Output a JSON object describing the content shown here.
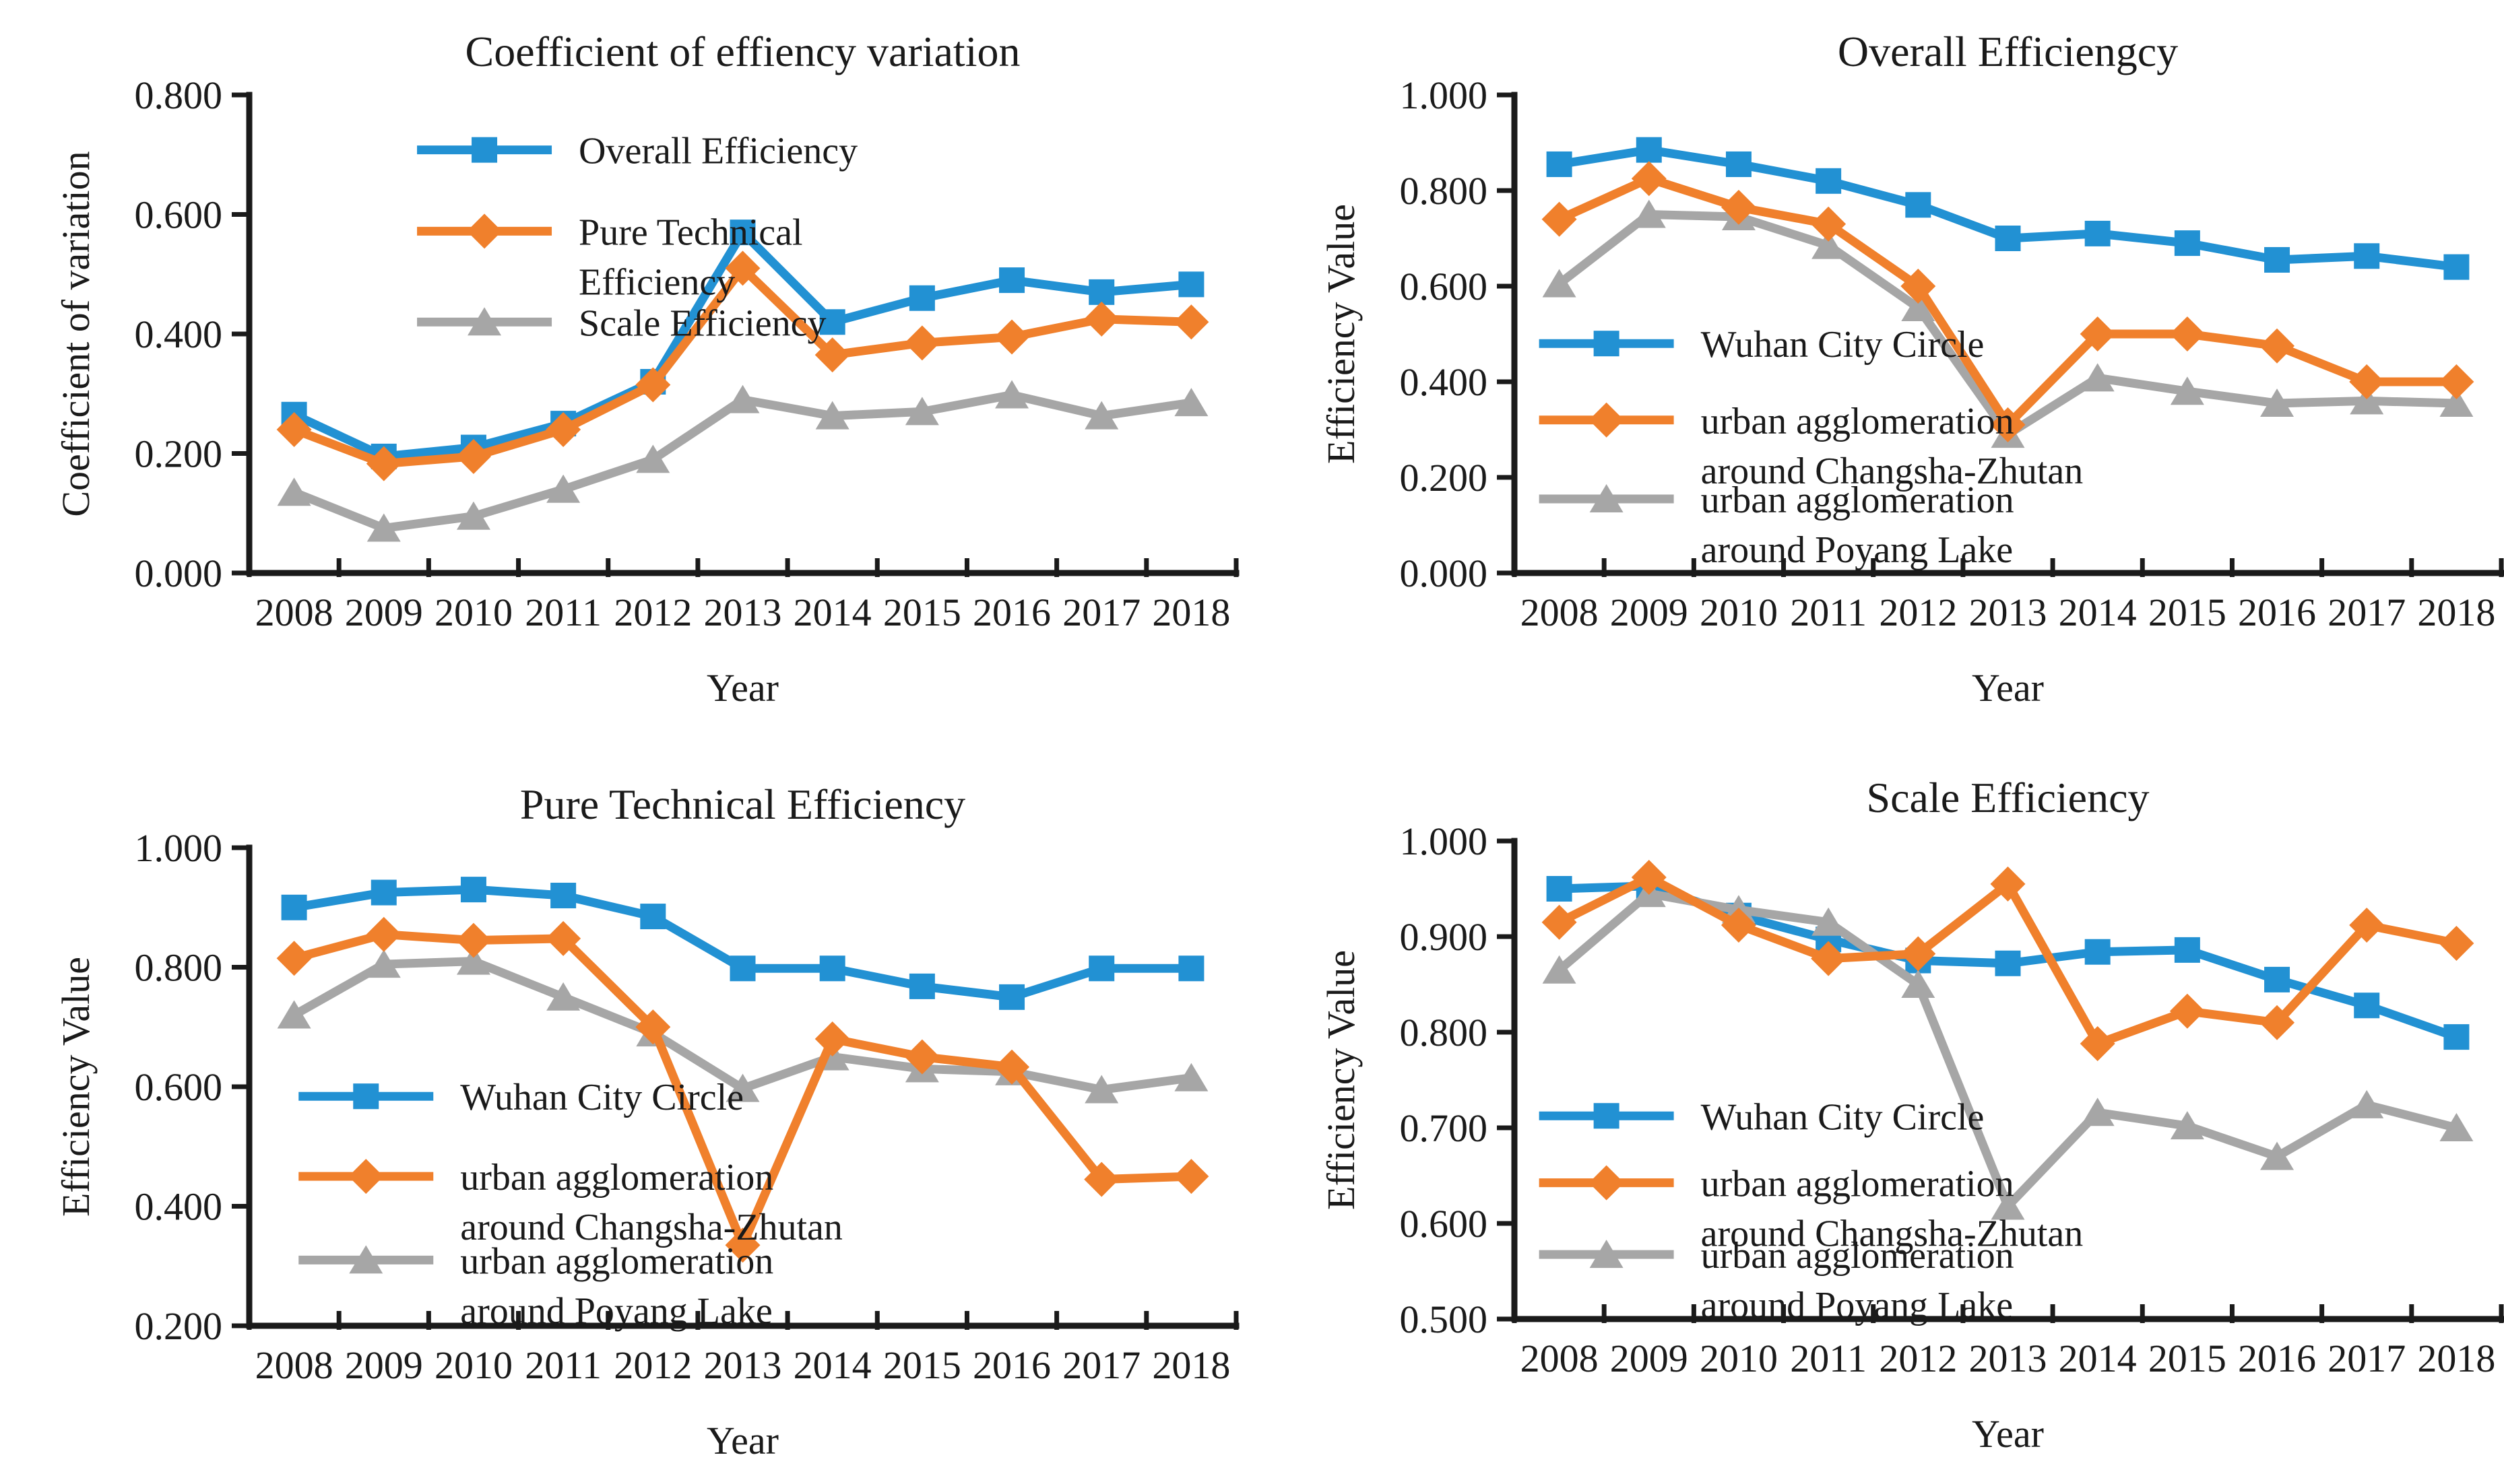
{
  "figure": {
    "background": "#ffffff",
    "palette": {
      "blue": "#2291D3",
      "orange": "#F0802C",
      "gray": "#A6A6A6",
      "axis": "#1a1a1a",
      "text": "#1a1a1a"
    }
  },
  "chart_data": [
    {
      "type": "line",
      "id": "coefficient-variation",
      "title": "Coefficient of effiency variation",
      "xlabel": "Year",
      "ylabel": "Coefficient of variation",
      "categories": [
        "2008",
        "2009",
        "2010",
        "2011",
        "2012",
        "2013",
        "2014",
        "2015",
        "2016",
        "2017",
        "2018"
      ],
      "ylim": [
        0.0,
        0.8
      ],
      "ystep": 0.2,
      "grid": "off",
      "legend_position": "inside-top-left",
      "legend_x": 0.17,
      "legend_item_y": [
        0.115,
        0.285,
        0.475
      ],
      "series": [
        {
          "name": "Overall Efficiency",
          "legend_lines": [
            "Overall Efficiency"
          ],
          "marker": "square",
          "color_key": "blue",
          "values": [
            0.265,
            0.195,
            0.21,
            0.25,
            0.32,
            0.57,
            0.42,
            0.46,
            0.49,
            0.47,
            0.483
          ]
        },
        {
          "name": "Pure Technical Efficiency",
          "legend_lines": [
            "Pure Technical",
            "Efficiency"
          ],
          "marker": "diamond",
          "color_key": "orange",
          "values": [
            0.24,
            0.183,
            0.195,
            0.24,
            0.315,
            0.51,
            0.365,
            0.385,
            0.395,
            0.425,
            0.42
          ]
        },
        {
          "name": "Scale Efficiency",
          "legend_lines": [
            "Scale Efficiency"
          ],
          "marker": "triangle",
          "color_key": "gray",
          "values": [
            0.135,
            0.075,
            0.095,
            0.14,
            0.19,
            0.29,
            0.263,
            0.27,
            0.298,
            0.263,
            0.285
          ]
        }
      ]
    },
    {
      "type": "line",
      "id": "overall-efficiency",
      "title": "Overall Efficiengcy",
      "xlabel": "Year",
      "ylabel": "Efficiency Value",
      "categories": [
        "2008",
        "2009",
        "2010",
        "2011",
        "2012",
        "2013",
        "2014",
        "2015",
        "2016",
        "2017",
        "2018"
      ],
      "ylim": [
        0.0,
        1.0
      ],
      "ystep": 0.2,
      "grid": "off",
      "legend_position": "inside-left-middle",
      "legend_x": 0.025,
      "legend_item_y": [
        0.52,
        0.68,
        0.845
      ],
      "series": [
        {
          "name": "Wuhan City Circle",
          "legend_lines": [
            "Wuhan City Circle"
          ],
          "marker": "square",
          "color_key": "blue",
          "values": [
            0.855,
            0.885,
            0.855,
            0.82,
            0.77,
            0.7,
            0.71,
            0.69,
            0.655,
            0.663,
            0.64
          ]
        },
        {
          "name": "urban agglomeration around Changsha-Zhutan",
          "legend_lines": [
            "urban agglomeration",
            "around Changsha-Zhutan"
          ],
          "marker": "diamond",
          "color_key": "orange",
          "values": [
            0.74,
            0.825,
            0.765,
            0.73,
            0.6,
            0.31,
            0.5,
            0.5,
            0.475,
            0.4,
            0.4
          ]
        },
        {
          "name": "urban agglomeration around Poyang Lake",
          "legend_lines": [
            "urban agglomeration",
            "around Poyang Lake"
          ],
          "marker": "triangle",
          "color_key": "gray",
          "values": [
            0.605,
            0.75,
            0.745,
            0.685,
            0.555,
            0.29,
            0.408,
            0.38,
            0.355,
            0.36,
            0.355
          ]
        }
      ]
    },
    {
      "type": "line",
      "id": "pure-technical-efficiency",
      "title": "Pure Technical Efficiency",
      "xlabel": "Year",
      "ylabel": "Efficiency Value",
      "categories": [
        "2008",
        "2009",
        "2010",
        "2011",
        "2012",
        "2013",
        "2014",
        "2015",
        "2016",
        "2017",
        "2018"
      ],
      "ylim": [
        0.2,
        1.0
      ],
      "ystep": 0.2,
      "grid": "off",
      "legend_position": "inside-left-bottom",
      "legend_x": 0.05,
      "legend_item_y": [
        0.52,
        0.6875,
        0.8625
      ],
      "series": [
        {
          "name": "Wuhan City Circle",
          "legend_lines": [
            "Wuhan City Circle"
          ],
          "marker": "square",
          "color_key": "blue",
          "values": [
            0.9,
            0.925,
            0.93,
            0.92,
            0.885,
            0.798,
            0.798,
            0.768,
            0.75,
            0.798,
            0.798
          ]
        },
        {
          "name": "urban agglomeration around Changsha-Zhutan",
          "legend_lines": [
            "urban agglomeration",
            "around Changsha-Zhutan"
          ],
          "marker": "diamond",
          "color_key": "orange",
          "values": [
            0.815,
            0.855,
            0.845,
            0.848,
            0.7,
            0.335,
            0.68,
            0.65,
            0.633,
            0.445,
            0.45
          ]
        },
        {
          "name": "urban agglomeration around Poyang Lake",
          "legend_lines": [
            "urban agglomeration",
            "around Poyang Lake"
          ],
          "marker": "triangle",
          "color_key": "gray",
          "values": [
            0.72,
            0.805,
            0.81,
            0.75,
            0.69,
            0.597,
            0.65,
            0.63,
            0.625,
            0.595,
            0.615
          ]
        }
      ]
    },
    {
      "type": "line",
      "id": "scale-efficiency",
      "title": "Scale Efficiency",
      "xlabel": "Year",
      "ylabel": "Efficiency Value",
      "categories": [
        "2008",
        "2009",
        "2010",
        "2011",
        "2012",
        "2013",
        "2014",
        "2015",
        "2016",
        "2017",
        "2018"
      ],
      "ylim": [
        0.5,
        1.0
      ],
      "ystep": 0.1,
      "grid": "off",
      "legend_position": "inside-left-bottom",
      "legend_x": 0.025,
      "legend_item_y": [
        0.575,
        0.715,
        0.865
      ],
      "series": [
        {
          "name": "Wuhan City Circle",
          "legend_lines": [
            "Wuhan City Circle"
          ],
          "marker": "square",
          "color_key": "blue",
          "values": [
            0.95,
            0.953,
            0.922,
            0.897,
            0.875,
            0.872,
            0.884,
            0.886,
            0.855,
            0.828,
            0.795
          ]
        },
        {
          "name": "urban agglomeration around Changsha-Zhutan",
          "legend_lines": [
            "urban agglomeration",
            "around Changsha-Zhutan"
          ],
          "marker": "diamond",
          "color_key": "orange",
          "values": [
            0.915,
            0.962,
            0.912,
            0.877,
            0.882,
            0.955,
            0.788,
            0.822,
            0.81,
            0.912,
            0.893
          ]
        },
        {
          "name": "urban agglomeration around Poyang Lake",
          "legend_lines": [
            "urban agglomeration",
            "around Poyang Lake"
          ],
          "marker": "triangle",
          "color_key": "gray",
          "values": [
            0.865,
            0.945,
            0.928,
            0.915,
            0.85,
            0.618,
            0.716,
            0.702,
            0.67,
            0.724,
            0.7
          ]
        }
      ]
    }
  ]
}
